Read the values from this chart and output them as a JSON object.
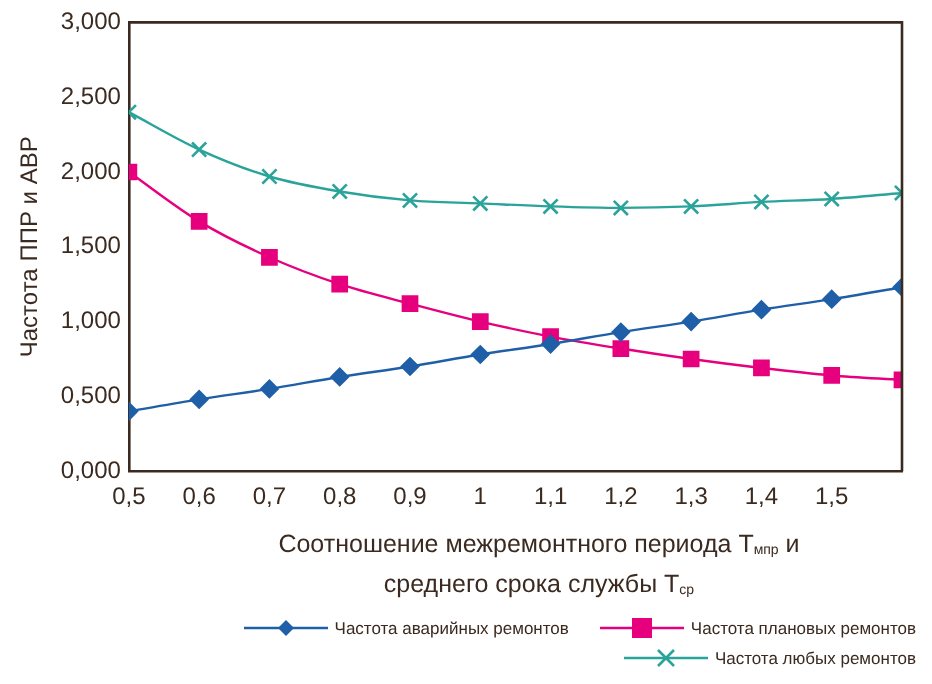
{
  "chart_data": {
    "type": "line",
    "xlabel": "Соотношение межремонтного периода Т$_{мпр}$ и\nсреднего срока службы Т$_{ср}$",
    "ylabel": "Частота ППР и АВР",
    "x": [
      0.5,
      0.6,
      0.7,
      0.8,
      0.9,
      1.0,
      1.1,
      1.2,
      1.3,
      1.4,
      1.5,
      1.6
    ],
    "xlim": [
      0.5,
      1.6
    ],
    "xticks": [
      {
        "value": 0.5,
        "label": "0,5"
      },
      {
        "value": 0.6,
        "label": "0,6"
      },
      {
        "value": 0.7,
        "label": "0,7"
      },
      {
        "value": 0.8,
        "label": "0,8"
      },
      {
        "value": 0.9,
        "label": "0,9"
      },
      {
        "value": 1,
        "label": "1"
      },
      {
        "value": 1.1,
        "label": "1,1"
      },
      {
        "value": 1.2,
        "label": "1,2"
      },
      {
        "value": 1.3,
        "label": "1,3"
      },
      {
        "value": 1.4,
        "label": "1,4"
      },
      {
        "value": 1.5,
        "label": "1,5"
      }
    ],
    "ylim": [
      0,
      3
    ],
    "yticks": [
      {
        "value": 0,
        "label": "0,000"
      },
      {
        "value": 0.5,
        "label": "0,500"
      },
      {
        "value": 1,
        "label": "1,000"
      },
      {
        "value": 1.5,
        "label": "1,500"
      },
      {
        "value": 2,
        "label": "2,000"
      },
      {
        "value": 2.5,
        "label": "2,500"
      },
      {
        "value": 3,
        "label": "3,000"
      }
    ],
    "grid": false,
    "legend": "bottom right",
    "series": [
      {
        "name": "Частота аварийных ремонтов",
        "color": "#1f5fa8",
        "marker": "diamond",
        "values": [
          0.4,
          0.48,
          0.55,
          0.63,
          0.7,
          0.78,
          0.85,
          0.93,
          1.0,
          1.08,
          1.15,
          1.23
        ]
      },
      {
        "name": "Частота плановых ремонтов",
        "color": "#e6007e",
        "marker": "square",
        "values": [
          2.0,
          1.67,
          1.43,
          1.25,
          1.12,
          1.0,
          0.9,
          0.82,
          0.75,
          0.69,
          0.64,
          0.61
        ]
      },
      {
        "name": "Частота любых ремонтов",
        "color": "#2aa39a",
        "marker": "cross",
        "values": [
          2.4,
          2.15,
          1.97,
          1.87,
          1.81,
          1.79,
          1.77,
          1.76,
          1.77,
          1.8,
          1.82,
          1.86
        ]
      }
    ]
  }
}
